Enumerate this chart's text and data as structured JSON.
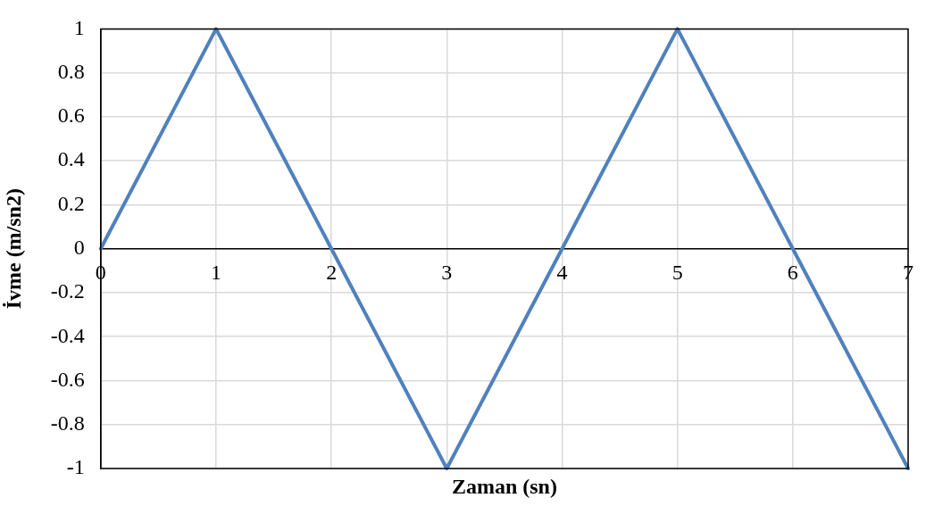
{
  "chart_data": {
    "type": "line",
    "xlabel": "Zaman (sn)",
    "ylabel": "İvme (m/sn2)",
    "x": [
      0,
      1,
      2,
      3,
      4,
      5,
      6,
      7
    ],
    "series": [
      {
        "color": "#4f81bd",
        "values": [
          0,
          1,
          0,
          -1,
          0,
          1,
          0,
          -1
        ]
      }
    ],
    "xlim": [
      0,
      7
    ],
    "xticks": [
      0,
      1,
      2,
      3,
      4,
      5,
      6,
      7
    ],
    "ylim": [
      -1,
      1
    ],
    "yticks": [
      -1,
      -0.8,
      -0.6,
      -0.4,
      -0.2,
      0,
      0.2,
      0.4,
      0.6,
      0.8,
      1
    ],
    "grid": true,
    "marker": "none",
    "line_style": "solid"
  }
}
